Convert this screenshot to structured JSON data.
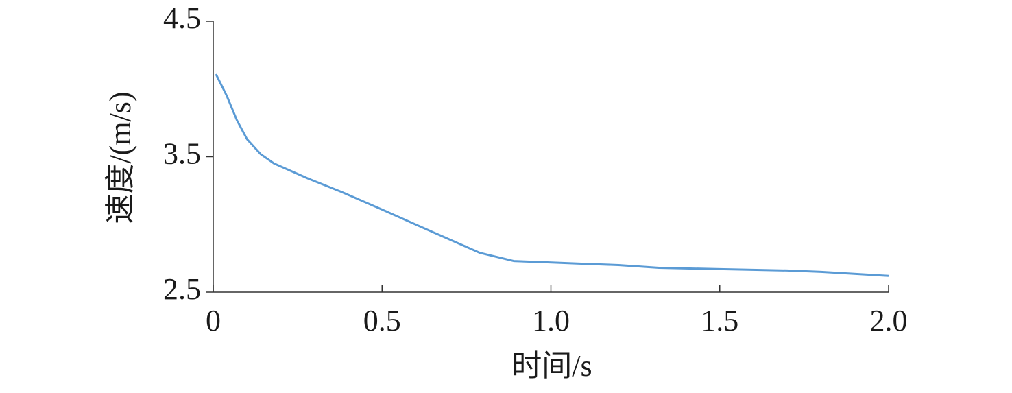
{
  "chart_data": {
    "type": "line",
    "x_label": "时间/s",
    "y_label": "速度/(m/s)",
    "xlim": [
      0,
      2.0
    ],
    "ylim": [
      2.5,
      4.5
    ],
    "xticks": [
      0,
      0.5,
      {
        "value": 1,
        "label": "1.0"
      },
      1.5,
      {
        "value": 2,
        "label": "2.0"
      }
    ],
    "yticks": [
      2.5,
      3.5,
      4.5
    ],
    "x": [
      0.008,
      0.04,
      0.07,
      0.1,
      0.14,
      0.18,
      0.28,
      0.38,
      0.5,
      0.59,
      0.69,
      0.79,
      0.89,
      0.99,
      1.09,
      1.2,
      1.32,
      1.5,
      1.7,
      1.8,
      2.0
    ],
    "series": [
      {
        "color": "#5b9bd5",
        "values": [
          4.11,
          3.95,
          3.77,
          3.63,
          3.52,
          3.45,
          3.34,
          3.24,
          3.11,
          3.01,
          2.9,
          2.79,
          2.73,
          2.72,
          2.71,
          2.7,
          2.68,
          2.67,
          2.66,
          2.65,
          2.62
        ]
      }
    ]
  }
}
